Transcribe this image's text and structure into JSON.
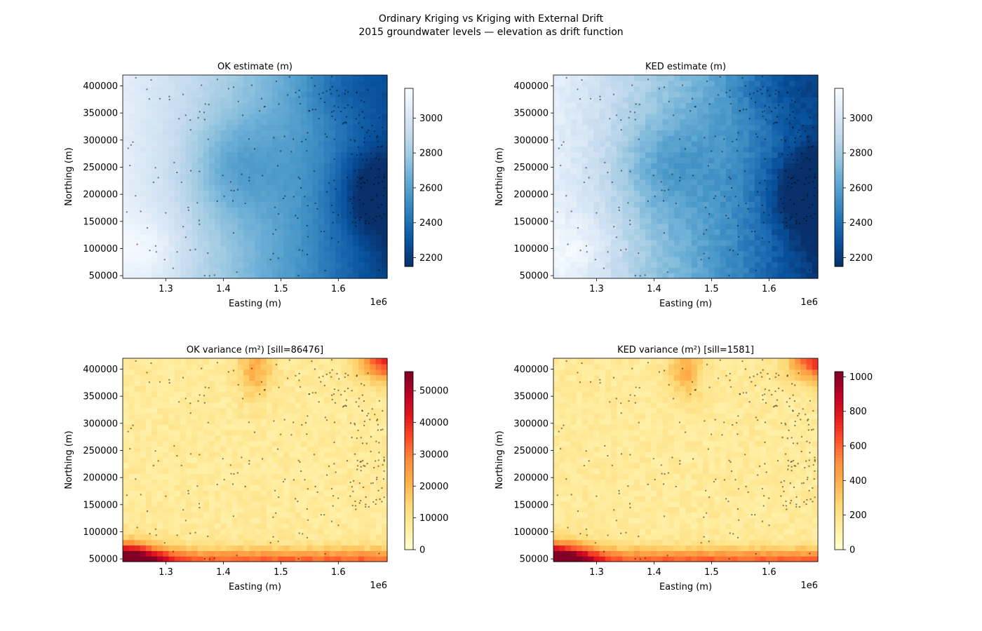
{
  "figure": {
    "title": "Ordinary Kriging vs Kriging with External Drift",
    "subtitle": "2015 groundwater levels — elevation as drift function"
  },
  "chart_data": [
    {
      "type": "heatmap",
      "title": "OK estimate (m)",
      "xlabel": "Easting (m)",
      "ylabel": "Northing (m)",
      "x_offset_label": "1e6",
      "xlim": [
        1225000,
        1685000
      ],
      "ylim": [
        45000,
        420000
      ],
      "x_ticks": [
        1300000,
        1400000,
        1500000,
        1600000
      ],
      "x_tick_labels": [
        "1.3",
        "1.4",
        "1.5",
        "1.6"
      ],
      "y_ticks": [
        50000,
        100000,
        150000,
        200000,
        250000,
        300000,
        350000,
        400000
      ],
      "y_tick_labels": [
        "50000",
        "100000",
        "150000",
        "200000",
        "250000",
        "300000",
        "350000",
        "400000"
      ],
      "colormap": "Blues_r",
      "color_range": [
        2150,
        3170
      ],
      "colorbar_ticks": [
        2200,
        2400,
        2600,
        2800,
        3000
      ],
      "colorbar_tick_labels": [
        "2200",
        "2400",
        "2600",
        "2800",
        "3000"
      ],
      "grid": false,
      "overlay": "well locations (black points)"
    },
    {
      "type": "heatmap",
      "title": "KED estimate (m)",
      "xlabel": "Easting (m)",
      "ylabel": "Northing (m)",
      "x_offset_label": "1e6",
      "xlim": [
        1225000,
        1685000
      ],
      "ylim": [
        45000,
        420000
      ],
      "x_ticks": [
        1300000,
        1400000,
        1500000,
        1600000
      ],
      "x_tick_labels": [
        "1.3",
        "1.4",
        "1.5",
        "1.6"
      ],
      "y_ticks": [
        50000,
        100000,
        150000,
        200000,
        250000,
        300000,
        350000,
        400000
      ],
      "y_tick_labels": [
        "50000",
        "100000",
        "150000",
        "200000",
        "250000",
        "300000",
        "350000",
        "400000"
      ],
      "colormap": "Blues_r",
      "color_range": [
        2150,
        3170
      ],
      "colorbar_ticks": [
        2200,
        2400,
        2600,
        2800,
        3000
      ],
      "colorbar_tick_labels": [
        "2200",
        "2400",
        "2600",
        "2800",
        "3000"
      ],
      "grid": false,
      "overlay": "well locations (black points)"
    },
    {
      "type": "heatmap",
      "title": "OK variance (m²)  [sill=86476]",
      "xlabel": "Easting (m)",
      "ylabel": "Northing (m)",
      "x_offset_label": "1e6",
      "xlim": [
        1225000,
        1685000
      ],
      "ylim": [
        45000,
        420000
      ],
      "x_ticks": [
        1300000,
        1400000,
        1500000,
        1600000
      ],
      "x_tick_labels": [
        "1.3",
        "1.4",
        "1.5",
        "1.6"
      ],
      "y_ticks": [
        50000,
        100000,
        150000,
        200000,
        250000,
        300000,
        350000,
        400000
      ],
      "y_tick_labels": [
        "50000",
        "100000",
        "150000",
        "200000",
        "250000",
        "300000",
        "350000",
        "400000"
      ],
      "colormap": "YlOrRd",
      "color_range": [
        0,
        56000
      ],
      "colorbar_ticks": [
        0,
        10000,
        20000,
        30000,
        40000,
        50000
      ],
      "colorbar_tick_labels": [
        "0",
        "10000",
        "20000",
        "30000",
        "40000",
        "50000"
      ],
      "grid": false,
      "overlay": "well locations (black points)"
    },
    {
      "type": "heatmap",
      "title": "KED variance (m²) [sill=1581]",
      "xlabel": "Easting (m)",
      "ylabel": "Northing (m)",
      "x_offset_label": "1e6",
      "xlim": [
        1225000,
        1685000
      ],
      "ylim": [
        45000,
        420000
      ],
      "x_ticks": [
        1300000,
        1400000,
        1500000,
        1600000
      ],
      "x_tick_labels": [
        "1.3",
        "1.4",
        "1.5",
        "1.6"
      ],
      "y_ticks": [
        50000,
        100000,
        150000,
        200000,
        250000,
        300000,
        350000,
        400000
      ],
      "y_tick_labels": [
        "50000",
        "100000",
        "150000",
        "200000",
        "250000",
        "300000",
        "350000",
        "400000"
      ],
      "colormap": "YlOrRd",
      "color_range": [
        0,
        1030
      ],
      "colorbar_ticks": [
        0,
        200,
        400,
        600,
        800,
        1000
      ],
      "colorbar_tick_labels": [
        "0",
        "200",
        "400",
        "600",
        "800",
        "1000"
      ],
      "grid": false,
      "overlay": "well locations (black points)"
    }
  ]
}
